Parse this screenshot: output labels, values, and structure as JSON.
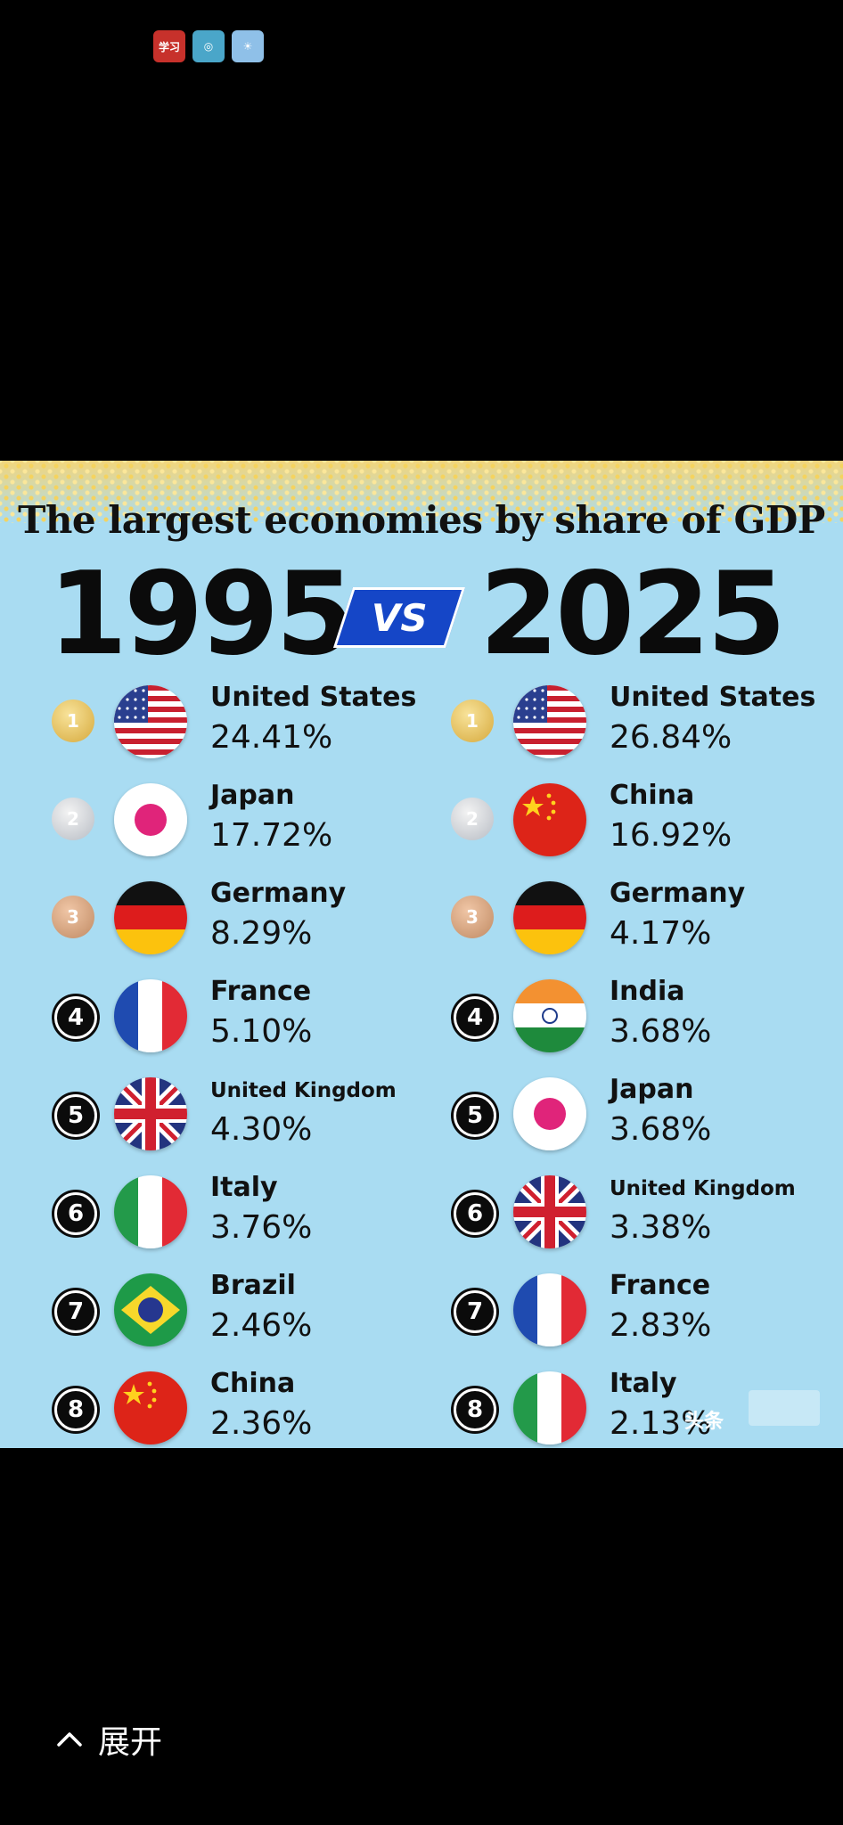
{
  "status_icons": [
    "学习",
    "◎",
    "☀"
  ],
  "infographic": {
    "title": "The largest economies by share of GDP",
    "year_left": "1995",
    "vs_label": "VS",
    "year_right": "2025",
    "left": [
      {
        "rank": "1",
        "country": "United States",
        "share": "24.41%",
        "flag": "us-flag-icon"
      },
      {
        "rank": "2",
        "country": "Japan",
        "share": "17.72%",
        "flag": "japan-flag-icon"
      },
      {
        "rank": "3",
        "country": "Germany",
        "share": "8.29%",
        "flag": "germany-flag-icon"
      },
      {
        "rank": "4",
        "country": "France",
        "share": "5.10%",
        "flag": "france-flag-icon"
      },
      {
        "rank": "5",
        "country": "United Kingdom",
        "share": "4.30%",
        "flag": "uk-flag-icon"
      },
      {
        "rank": "6",
        "country": "Italy",
        "share": "3.76%",
        "flag": "italy-flag-icon"
      },
      {
        "rank": "7",
        "country": "Brazil",
        "share": "2.46%",
        "flag": "brazil-flag-icon"
      },
      {
        "rank": "8",
        "country": "China",
        "share": "2.36%",
        "flag": "china-flag-icon"
      }
    ],
    "right": [
      {
        "rank": "1",
        "country": "United States",
        "share": "26.84%",
        "flag": "us-flag-icon"
      },
      {
        "rank": "2",
        "country": "China",
        "share": "16.92%",
        "flag": "china-flag-icon"
      },
      {
        "rank": "3",
        "country": "Germany",
        "share": "4.17%",
        "flag": "germany-flag-icon"
      },
      {
        "rank": "4",
        "country": "India",
        "share": "3.68%",
        "flag": "india-flag-icon"
      },
      {
        "rank": "5",
        "country": "Japan",
        "share": "3.68%",
        "flag": "japan-flag-icon"
      },
      {
        "rank": "6",
        "country": "United Kingdom",
        "share": "3.38%",
        "flag": "uk-flag-icon"
      },
      {
        "rank": "7",
        "country": "France",
        "share": "2.83%",
        "flag": "france-flag-icon"
      },
      {
        "rank": "8",
        "country": "Italy",
        "share": "2.13%",
        "flag": "italy-flag-icon"
      }
    ]
  },
  "watermark": "头条",
  "expand_label": "展开",
  "colors": {
    "background": "#000000",
    "infographic_bg": "#a9dcf2",
    "vs_blue": "#1546c7"
  }
}
